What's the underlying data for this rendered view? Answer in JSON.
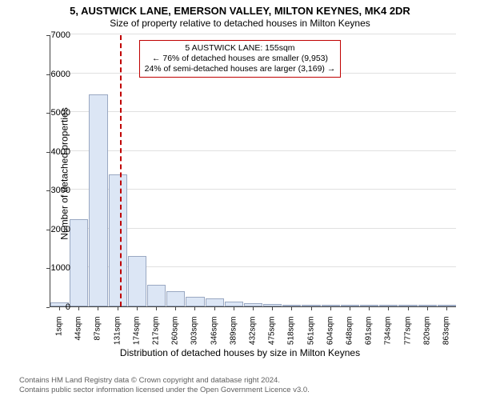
{
  "title": "5, AUSTWICK LANE, EMERSON VALLEY, MILTON KEYNES, MK4 2DR",
  "subtitle": "Size of property relative to detached houses in Milton Keynes",
  "chart": {
    "type": "histogram",
    "ylabel": "Number of detached properties",
    "xlabel": "Distribution of detached houses by size in Milton Keynes",
    "ylim": [
      0,
      7000
    ],
    "ytick_step": 1000,
    "yticks": [
      0,
      1000,
      2000,
      3000,
      4000,
      5000,
      6000,
      7000
    ],
    "bar_fill": "#dce6f5",
    "bar_border": "#9aa8c2",
    "grid_color": "#e0e0e0",
    "background_color": "#ffffff",
    "xticks": [
      "1sqm",
      "44sqm",
      "87sqm",
      "131sqm",
      "174sqm",
      "217sqm",
      "260sqm",
      "303sqm",
      "346sqm",
      "389sqm",
      "432sqm",
      "475sqm",
      "518sqm",
      "561sqm",
      "604sqm",
      "648sqm",
      "691sqm",
      "734sqm",
      "777sqm",
      "820sqm",
      "863sqm"
    ],
    "values": [
      100,
      2250,
      5450,
      3400,
      1300,
      550,
      400,
      250,
      200,
      130,
      90,
      60,
      40,
      30,
      20,
      15,
      10,
      8,
      6,
      5,
      4
    ],
    "reference_line": {
      "value_sqm": 155,
      "color": "#c00000"
    },
    "annotation": {
      "line1": "5 AUSTWICK LANE: 155sqm",
      "line2": "← 76% of detached houses are smaller (9,953)",
      "line3": "24% of semi-detached houses are larger (3,169) →",
      "border_color": "#c00000",
      "bg_color": "#ffffff",
      "fontsize": 10.5
    }
  },
  "footer": {
    "line1": "Contains HM Land Registry data © Crown copyright and database right 2024.",
    "line2": "Contains public sector information licensed under the Open Government Licence v3.0."
  }
}
